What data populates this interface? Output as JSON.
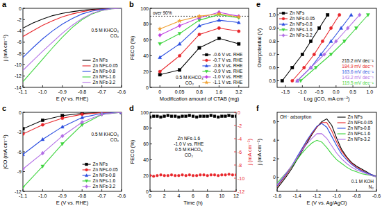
{
  "chart_data": [
    {
      "type": "line",
      "title": "a",
      "x_label": "E (V vs. RHE)",
      "y_label": "j (mA cm⁻²)",
      "x": [
        -1.1,
        -1.05,
        -1,
        -0.95,
        -0.9,
        -0.85,
        -0.8,
        -0.75,
        -0.7,
        -0.65,
        -0.6
      ],
      "series": [
        {
          "name": "Zn NFs",
          "color": "#000000",
          "values": [
            -3.5,
            -2.6,
            -1.9,
            -1.3,
            -0.9,
            -0.6,
            -0.35,
            -0.2,
            -0.1,
            -0.05,
            0
          ]
        },
        {
          "name": "Zn NFs-0.05",
          "color": "#e8262b",
          "values": [
            -5.0,
            -4.0,
            -3.0,
            -2.2,
            -1.5,
            -1.0,
            -0.6,
            -0.3,
            -0.15,
            -0.05,
            0
          ]
        },
        {
          "name": "Zn NFs-0.8",
          "color": "#2a4de0",
          "values": [
            -8.7,
            -7.0,
            -5.4,
            -4.0,
            -2.8,
            -1.8,
            -1.0,
            -0.5,
            -0.2,
            -0.05,
            0
          ]
        },
        {
          "name": "Zn NFs-1.6",
          "color": "#3dd43d",
          "values": [
            -13.0,
            -11.0,
            -9.0,
            -7.0,
            -5.1,
            -3.4,
            -2.0,
            -1.0,
            -0.4,
            -0.1,
            0
          ]
        },
        {
          "name": "Zn NFs-3.2",
          "color": "#b26ee6",
          "values": [
            -11.0,
            -9.3,
            -7.6,
            -6.0,
            -4.4,
            -3.0,
            -1.8,
            -0.9,
            -0.35,
            -0.1,
            0
          ]
        }
      ],
      "xlim": [
        -1.1,
        -0.6
      ],
      "xticks": [
        -1.1,
        {
          "value": -1,
          "label": "-1.0"
        },
        -0.9,
        -0.8,
        -0.7,
        -0.6
      ],
      "ylim": [
        -14,
        0
      ],
      "yticks": [
        -14,
        -12,
        -10,
        -8,
        -6,
        -4,
        -2,
        0
      ],
      "grid": false,
      "legend": "lower right",
      "annotations": [
        {
          "text": "0.5 M KHCO₃"
        },
        {
          "text": "CO₂"
        }
      ]
    },
    {
      "type": "line",
      "title": "b",
      "x_label": "Modification amount of CTAB (mg)",
      "y_label": "FECO (%)",
      "categories": [
        "0",
        "0.05",
        "0.8",
        "1.6",
        "3.2"
      ],
      "series": [
        {
          "name": "-0.6 V vs. RHE",
          "color": "#000000",
          "marker": "square",
          "values": [
            16,
            22,
            50,
            62,
            55
          ]
        },
        {
          "name": "-0.7 V vs. RHE",
          "color": "#e8262b",
          "marker": "circle",
          "values": [
            20,
            40,
            67,
            75,
            71
          ]
        },
        {
          "name": "-0.8 V vs. RHE",
          "color": "#2a4de0",
          "marker": "triangle",
          "values": [
            38,
            55,
            78,
            85,
            82
          ]
        },
        {
          "name": "-0.9 V vs. RHE",
          "color": "#3dd43d",
          "marker": "triangle-down",
          "values": [
            55,
            68,
            85,
            92,
            88
          ]
        },
        {
          "name": "-1.0 V vs. RHE",
          "color": "#c040e0",
          "marker": "diamond",
          "values": [
            66,
            78,
            88,
            95,
            90
          ]
        },
        {
          "name": "-1.1 V vs. RHE",
          "color": "#f0a030",
          "marker": "star",
          "values": [
            74,
            84,
            90,
            93,
            89
          ]
        }
      ],
      "ylim": [
        0,
        100
      ],
      "yticks": [
        0,
        20,
        40,
        60,
        80,
        100
      ],
      "grid": false,
      "legend": "lower right",
      "reference_line": {
        "value": 90,
        "label": "over 90%"
      },
      "annotations": [
        {
          "text": "0.5 M KHCO₃"
        },
        {
          "text": "CO₂"
        }
      ]
    },
    {
      "type": "line",
      "title": "c",
      "x_label": "E (V vs. RHE)",
      "y_label": "jCO (mA cm⁻²)",
      "x": [
        -1.1,
        -1,
        -0.9,
        -0.8,
        -0.7,
        -0.6
      ],
      "series": [
        {
          "name": "Zn NFs",
          "color": "#000000",
          "marker": "square",
          "values": [
            -2.5,
            -1.2,
            -0.5,
            -0.15,
            -0.03,
            0
          ]
        },
        {
          "name": "Zn NFs-0.05",
          "color": "#e8262b",
          "marker": "circle",
          "values": [
            -3.3,
            -1.9,
            -0.9,
            -0.3,
            -0.05,
            0
          ]
        },
        {
          "name": "Zn NFs-0.8",
          "color": "#2a4de0",
          "marker": "triangle",
          "values": [
            -6.4,
            -4.1,
            -2.2,
            -0.8,
            -0.15,
            0
          ]
        },
        {
          "name": "Zn NFs-1.6",
          "color": "#3dd43d",
          "marker": "triangle-down",
          "values": [
            -11.4,
            -8.2,
            -4.8,
            -1.9,
            -0.35,
            0
          ]
        },
        {
          "name": "Zn NFs-3.2",
          "color": "#b26ee6",
          "marker": "diamond",
          "values": [
            -8.6,
            -6.2,
            -3.6,
            -1.5,
            -0.3,
            0
          ]
        }
      ],
      "xlim": [
        -1.1,
        -0.6
      ],
      "xticks": [
        -1.1,
        {
          "value": -1,
          "label": "-1.0"
        },
        -0.9,
        -0.8,
        -0.7,
        -0.6
      ],
      "ylim": [
        -12,
        0
      ],
      "yticks": [
        -12,
        -9,
        -6,
        -3,
        0
      ],
      "grid": false,
      "legend": "lower right",
      "annotations": [
        {
          "text": "0.5 M KHCO₃"
        },
        {
          "text": "CO₂"
        }
      ]
    },
    {
      "type": "scatter",
      "title": "d",
      "x_label": "Time (h)",
      "y_label": "FECO (%)",
      "y2_label": "j (mA cm⁻²)",
      "x": [
        0,
        0.5,
        1,
        1.5,
        2,
        2.5,
        3,
        3.5,
        4,
        4.5,
        5,
        5.5,
        6,
        6.5,
        7,
        7.5,
        8,
        8.5,
        9,
        9.5,
        10,
        10.5,
        11,
        11.5,
        12
      ],
      "series": [
        {
          "color": "#000000",
          "marker": "square",
          "values": [
            94,
            95,
            95,
            94,
            95,
            96,
            95,
            95,
            94,
            95,
            95,
            96,
            95,
            94,
            95,
            95,
            95,
            96,
            95,
            94,
            95,
            95,
            96,
            95,
            95
          ]
        },
        {
          "color": "#e8262b",
          "marker": "circle",
          "axis": "y2",
          "values": [
            -9.6,
            -9.7,
            -9.6,
            -9.5,
            -9.6,
            -9.6,
            -9.5,
            -9.6,
            -9.6,
            -9.5,
            -9.6,
            -9.5,
            -9.6,
            -9.6,
            -9.5,
            -9.5,
            -9.6,
            -9.5,
            -9.5,
            -9.6,
            -9.5,
            -9.5,
            -9.4,
            -9.5,
            -9.5
          ]
        }
      ],
      "xlim": [
        0,
        12
      ],
      "xticks": [
        0,
        2,
        4,
        6,
        8,
        10,
        12
      ],
      "ylim": [
        0,
        100
      ],
      "yticks": [
        0,
        20,
        40,
        60,
        80,
        100
      ],
      "y2lim": [
        -12,
        0
      ],
      "y2ticks": [
        -12,
        -10,
        -8,
        -6,
        -4,
        -2,
        0
      ],
      "grid": false,
      "annotations": [
        {
          "text": "Zn NFs-1.6"
        },
        {
          "text": "-1.0 V vs. RHE"
        },
        {
          "text": "0.5 M KHCO₃"
        },
        {
          "text": "CO₂"
        }
      ]
    },
    {
      "type": "line",
      "title": "e",
      "x_label": "Log (jCO, mA cm⁻²)",
      "y_label": "Overpotential (V)",
      "series": [
        {
          "name": "Zn NFs",
          "color": "#000000",
          "marker": "square",
          "x": [
            -1.6,
            -1.3,
            -1.0,
            -0.75,
            -0.5,
            -0.25
          ],
          "values": [
            0.5,
            0.6,
            0.7,
            0.8,
            0.9,
            1.0
          ]
        },
        {
          "name": "Zn NFs-0.05",
          "color": "#e8262b",
          "marker": "circle",
          "x": [
            -1.3,
            -0.95,
            -0.65,
            -0.4,
            -0.15,
            0.1
          ],
          "values": [
            0.5,
            0.6,
            0.7,
            0.8,
            0.9,
            1.0
          ]
        },
        {
          "name": "Zn NFs-0.8",
          "color": "#2a4de0",
          "marker": "triangle",
          "x": [
            -1.15,
            -0.75,
            -0.45,
            -0.15,
            0.15,
            0.45
          ],
          "values": [
            0.5,
            0.6,
            0.7,
            0.8,
            0.9,
            1.0
          ]
        },
        {
          "name": "Zn NFs-1.6",
          "color": "#3dd43d",
          "marker": "triangle-down",
          "x": [
            -1.05,
            -0.6,
            -0.15,
            0.25,
            0.6,
            0.95
          ],
          "values": [
            0.5,
            0.6,
            0.7,
            0.8,
            0.9,
            1.0
          ]
        },
        {
          "name": "Zn NFs-3.2",
          "color": "#b26ee6",
          "marker": "diamond",
          "x": [
            -1.15,
            -0.75,
            -0.35,
            0,
            0.35,
            0.7
          ],
          "values": [
            0.5,
            0.6,
            0.7,
            0.8,
            0.9,
            1.0
          ]
        }
      ],
      "xlim": [
        -1.75,
        1.2
      ],
      "xticks": [
        -1.5,
        {
          "value": -1,
          "label": "-1.0"
        },
        -0.5,
        {
          "value": 0,
          "label": "0.0"
        },
        0.5,
        {
          "value": 1,
          "label": "1.0"
        }
      ],
      "ylim": [
        0.45,
        1.05
      ],
      "yticks": [
        0.5,
        0.6,
        0.7,
        0.8,
        0.9,
        {
          "value": 1,
          "label": "1.0"
        }
      ],
      "grid": false,
      "legend": "upper left",
      "annotations": [
        {
          "text": "215.2 mV dec⁻¹",
          "color": "#000000"
        },
        {
          "text": "184.9 mV dec⁻¹",
          "color": "#e8262b"
        },
        {
          "text": "163.6 mV dec⁻¹",
          "color": "#2a4de0"
        },
        {
          "text": "143.2 mV dec⁻¹",
          "color": "#b26ee6"
        },
        {
          "text": "119.5 mV dec⁻¹",
          "color": "#3dd43d"
        }
      ]
    },
    {
      "type": "line",
      "title": "f",
      "x_label": "E (V vs. Ag/AgCl)",
      "y_label": "j (mA cm⁻²)",
      "x": [
        -1.6,
        -1.55,
        -1.5,
        -1.45,
        -1.4,
        -1.35,
        -1.3,
        -1.25,
        -1.2,
        -1.15,
        -1.1,
        -1.05,
        -1,
        -0.95,
        -0.9,
        -0.85,
        -0.8,
        -0.75,
        -0.7,
        -0.65,
        -0.6
      ],
      "series": [
        {
          "name": "Zn NFs",
          "color": "#000000",
          "values": [
            -1.2,
            -0.5,
            0.2,
            1.0,
            1.9,
            2.8,
            3.7,
            4.6,
            5.4,
            6.0,
            6.3,
            5.6,
            4.2,
            3.0,
            2.2,
            1.6,
            1.2,
            0.9,
            0.6,
            0.3,
            0.1
          ]
        },
        {
          "name": "Zn NFs-0.05",
          "color": "#e8262b",
          "values": [
            -1.0,
            -0.3,
            0.4,
            1.2,
            2.1,
            3.0,
            3.9,
            4.7,
            5.4,
            5.9,
            5.9,
            5.0,
            3.8,
            2.8,
            2.1,
            1.5,
            1.1,
            0.8,
            0.5,
            0.3,
            0.1
          ]
        },
        {
          "name": "Zn NFs-0.8",
          "color": "#2a4de0",
          "values": [
            -0.9,
            -0.2,
            0.5,
            1.3,
            2.2,
            3.1,
            4.0,
            4.8,
            5.5,
            5.8,
            5.4,
            4.4,
            3.4,
            2.5,
            1.9,
            1.4,
            1.0,
            0.7,
            0.5,
            0.3,
            0.1
          ]
        },
        {
          "name": "Zn NFs-1.6",
          "color": "#3dd43d",
          "values": [
            -0.6,
            0,
            0.6,
            1.2,
            1.9,
            2.6,
            3.2,
            3.7,
            4.0,
            3.8,
            3.2,
            2.5,
            1.9,
            1.5,
            1.1,
            0.8,
            0.6,
            0.4,
            0.3,
            0.2,
            0.05
          ]
        },
        {
          "name": "Zn NFs-3.2",
          "color": "#b26ee6",
          "values": [
            -0.8,
            -0.1,
            0.6,
            1.3,
            2.1,
            2.9,
            3.6,
            4.2,
            4.7,
            4.7,
            4.2,
            3.4,
            2.6,
            2.0,
            1.5,
            1.1,
            0.8,
            0.6,
            0.4,
            0.2,
            0.05
          ]
        }
      ],
      "xlim": [
        -1.6,
        -0.6
      ],
      "xticks": [
        -1.6,
        -1.4,
        -1.2,
        {
          "value": -1,
          "label": "-1.0"
        },
        -0.8,
        -0.6
      ],
      "ylim": [
        -1.5,
        7
      ],
      "yticks": [
        0,
        2,
        4,
        6
      ],
      "grid": false,
      "legend": "upper right",
      "annotations": [
        {
          "text": "OH⁻ adsorption"
        },
        {
          "text": "0.1 M KOH"
        },
        {
          "text": "N₂"
        }
      ]
    }
  ]
}
